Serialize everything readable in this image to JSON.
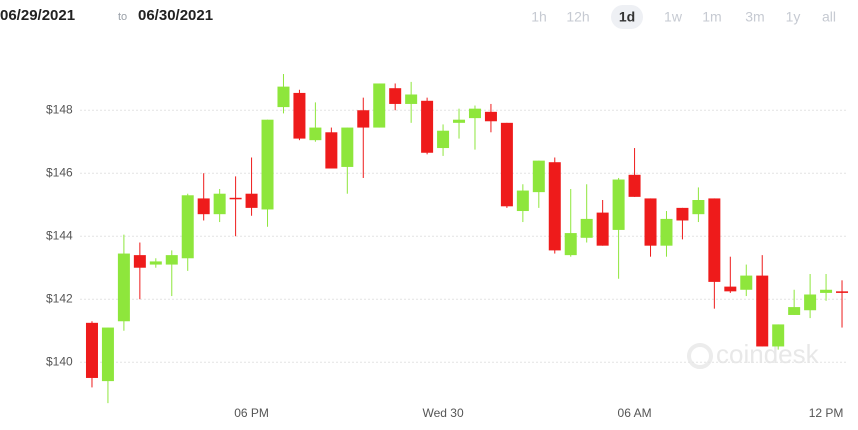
{
  "header": {
    "from": "06/29/2021",
    "to_word": "to",
    "to": "06/30/2021",
    "ranges": [
      "1h",
      "12h",
      "1d",
      "1w",
      "1m",
      "3m",
      "1y",
      "all"
    ],
    "active_range": "1d"
  },
  "watermark": "coindesk",
  "chart_data": {
    "type": "candlestick",
    "categories": [
      null,
      null,
      null,
      null,
      null,
      null,
      null,
      null,
      null,
      null,
      "06 PM",
      null,
      null,
      null,
      null,
      null,
      null,
      null,
      null,
      null,
      null,
      null,
      "Wed 30",
      null,
      null,
      null,
      null,
      null,
      null,
      null,
      null,
      null,
      null,
      null,
      "06 AM",
      null,
      null,
      null,
      null,
      null,
      null,
      null,
      null,
      null,
      null,
      null,
      "12 PM",
      null
    ],
    "open": [
      141.25,
      139.4,
      141.3,
      143.4,
      143.1,
      143.1,
      143.3,
      145.2,
      144.7,
      145.22,
      145.35,
      144.85,
      148.1,
      148.55,
      147.05,
      147.3,
      146.2,
      148.0,
      147.45,
      148.7,
      148.2,
      148.3,
      146.8,
      147.6,
      147.75,
      147.95,
      147.6,
      144.8,
      145.4,
      146.35,
      143.4,
      143.95,
      144.75,
      144.2,
      145.95,
      145.2,
      143.7,
      144.9,
      144.7,
      145.2,
      142.4,
      142.3,
      142.75,
      140.5,
      141.5,
      141.65,
      142.2,
      142.25
    ],
    "high": [
      141.3,
      141.1,
      144.05,
      143.8,
      143.3,
      143.55,
      145.35,
      146.0,
      145.5,
      145.9,
      146.5,
      147.7,
      149.15,
      148.65,
      148.25,
      147.45,
      147.45,
      148.4,
      148.85,
      148.85,
      148.9,
      148.4,
      147.55,
      148.05,
      148.15,
      148.2,
      147.6,
      145.65,
      146.4,
      146.5,
      145.5,
      145.65,
      145.15,
      145.85,
      146.8,
      145.2,
      144.8,
      144.9,
      145.55,
      145.2,
      143.35,
      143.1,
      143.4,
      141.2,
      142.3,
      142.8,
      142.8,
      142.6
    ],
    "low": [
      139.2,
      138.7,
      141.0,
      142.0,
      143.0,
      142.1,
      142.9,
      144.5,
      144.45,
      144.0,
      144.65,
      144.3,
      147.9,
      147.05,
      147.0,
      146.15,
      145.35,
      145.85,
      147.45,
      148.0,
      147.6,
      146.6,
      146.55,
      147.1,
      146.75,
      147.3,
      144.9,
      144.45,
      144.9,
      143.45,
      143.35,
      143.8,
      143.7,
      142.65,
      145.25,
      143.35,
      143.35,
      143.9,
      144.45,
      141.7,
      142.2,
      142.1,
      140.5,
      140.4,
      141.5,
      141.4,
      141.95,
      141.1
    ],
    "close": [
      139.5,
      141.1,
      143.45,
      143.0,
      143.2,
      143.4,
      145.3,
      144.7,
      145.35,
      145.18,
      144.9,
      147.7,
      148.75,
      147.1,
      147.45,
      146.15,
      147.45,
      147.45,
      148.85,
      148.2,
      148.5,
      146.65,
      147.35,
      147.7,
      148.05,
      147.65,
      144.95,
      145.45,
      146.4,
      143.55,
      144.1,
      144.55,
      143.7,
      145.8,
      145.25,
      143.7,
      144.55,
      144.5,
      145.15,
      142.55,
      142.25,
      142.75,
      140.5,
      141.2,
      141.75,
      142.15,
      142.3,
      142.2
    ],
    "up_color": "#8ee63c",
    "down_color": "#ee1b1b",
    "ylim": [
      138.8,
      149.5
    ],
    "yticks": [
      {
        "value": 140,
        "label": "$140"
      },
      {
        "value": 142,
        "label": "$142"
      },
      {
        "value": 144,
        "label": "$144"
      },
      {
        "value": 146,
        "label": "$146"
      },
      {
        "value": 148,
        "label": "$148"
      }
    ],
    "grid": true
  }
}
